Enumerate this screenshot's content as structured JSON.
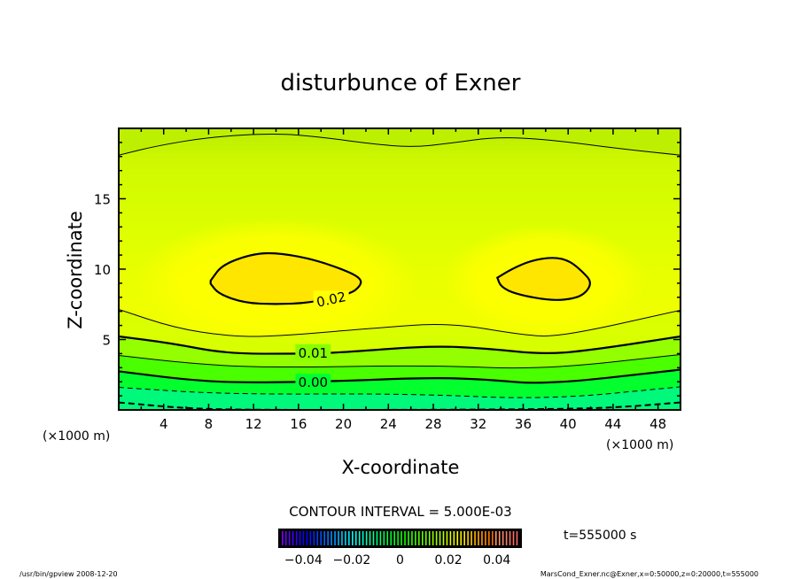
{
  "chart_data": {
    "type": "contour",
    "title": "disturbunce of Exner",
    "xlabel": "X-coordinate",
    "ylabel": "Z-coordinate",
    "x_unit_left": "(×1000 m)",
    "x_unit_right": "(×1000 m)",
    "xlim": [
      0,
      50
    ],
    "ylim": [
      0,
      20
    ],
    "xticks": [
      4,
      8,
      12,
      16,
      20,
      24,
      28,
      32,
      36,
      40,
      44,
      48
    ],
    "yticks": [
      5,
      10,
      15
    ],
    "contour_interval_text": "CONTOUR INTERVAL = 5.000E-03",
    "time_label": "t=555000 s",
    "colorbar": {
      "range": [
        -0.05,
        0.05
      ],
      "tick_labels": [
        "−0.04",
        "−0.02",
        "0",
        "0.02",
        "0.04"
      ],
      "tick_values": [
        -0.04,
        -0.02,
        0,
        0.02,
        0.04
      ]
    },
    "contours": [
      {
        "level": 0.015,
        "style": "thin",
        "x": [
          0,
          3.6,
          8.3,
          13.9,
          17.8,
          22.5,
          26.1,
          29.6,
          33.6,
          38.4,
          44.6,
          50
        ],
        "z": [
          18.1,
          18.8,
          19.4,
          19.65,
          19.4,
          18.9,
          18.65,
          18.95,
          19.4,
          19.2,
          18.55,
          18.1
        ]
      },
      {
        "level": 0.015,
        "style": "thin",
        "x": [
          0,
          5.0,
          9.6,
          13.5,
          22.8,
          29.4,
          36.0,
          39.3,
          50
        ],
        "z": [
          7.14,
          5.82,
          5.25,
          5.19,
          5.82,
          6.2,
          5.31,
          5.19,
          7.08
        ]
      },
      {
        "level": 0.01,
        "style": "thick",
        "label": "0.01",
        "label_at": [
          17.3,
          4.1
        ],
        "x": [
          0,
          4.6,
          9.6,
          16.2,
          19.5,
          27.7,
          32.7,
          38.0,
          42.6,
          50
        ],
        "z": [
          5.22,
          4.75,
          3.99,
          3.99,
          4.06,
          4.56,
          4.37,
          3.93,
          4.31,
          5.22
        ]
      },
      {
        "level": 0.005,
        "style": "thin",
        "x": [
          0,
          6.3,
          12.9,
          27.7,
          37.7,
          50
        ],
        "z": [
          3.87,
          3.3,
          2.99,
          3.18,
          2.86,
          3.93
        ]
      },
      {
        "level": 0.0,
        "style": "thick",
        "label": "0.00",
        "label_at": [
          17.3,
          2.0
        ],
        "x": [
          0,
          6.3,
          11.3,
          19.5,
          27.7,
          32.7,
          38.0,
          50
        ],
        "z": [
          2.74,
          2.11,
          1.92,
          2.04,
          2.3,
          2.17,
          1.79,
          2.86
        ]
      },
      {
        "level": -0.005,
        "style": "dashed",
        "x": [
          0,
          9.6,
          26.1,
          38.0,
          50
        ],
        "z": [
          1.6,
          1.1,
          1.16,
          0.72,
          1.64
        ]
      },
      {
        "level": -0.01,
        "style": "thick-dashed",
        "x": [
          0,
          6,
          12,
          25,
          38,
          44,
          50
        ],
        "z": [
          0.53,
          0.1,
          0.0,
          0.0,
          0.05,
          0.15,
          0.53
        ]
      },
      {
        "level": 0.02,
        "style": "thick-closed",
        "label": "0.02",
        "label_at": [
          18.9,
          7.9
        ],
        "x": [
          8.18,
          9.24,
          12.2,
          14.5,
          17.5,
          20.5,
          21.6,
          21.5,
          20.6,
          17.0,
          13.9,
          11.2,
          8.9,
          8.18
        ],
        "z": [
          9.18,
          10.35,
          11.14,
          11.12,
          10.66,
          9.81,
          9.28,
          8.8,
          8.23,
          7.6,
          7.5,
          7.6,
          8.23,
          8.96
        ]
      },
      {
        "level": 0.02,
        "style": "thick-closed",
        "x": [
          33.7,
          35.0,
          36.7,
          38.65,
          40.1,
          41.3,
          42.1,
          41.6,
          40.6,
          38.5,
          35.3,
          34.0,
          33.7
        ],
        "z": [
          9.39,
          10.02,
          10.61,
          10.86,
          10.61,
          9.81,
          9.08,
          8.33,
          7.91,
          7.75,
          8.23,
          8.75,
          9.39
        ]
      }
    ]
  },
  "footer": {
    "left": "/usr/bin/gpview   2008-12-20",
    "right": "MarsCond_Exner.nc@Exner,x=0:50000,z=0:20000,t=555000"
  },
  "colors": {
    "top": "#bdf000",
    "upper": "#d6ff00",
    "middle": "#e8ff00",
    "yellow": "#ffff00",
    "core": "#ffe600",
    "band_015": "#c4ff00",
    "band_010": "#88ff00",
    "band_005": "#40ff00",
    "band_000": "#00ff30",
    "band_m005": "#00f880"
  }
}
